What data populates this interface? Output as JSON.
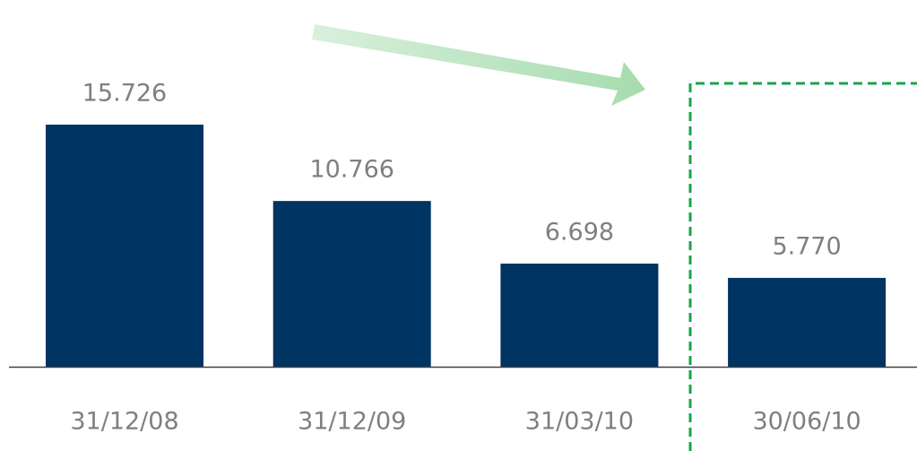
{
  "chart_data": {
    "type": "bar",
    "categories": [
      "31/12/08",
      "31/12/09",
      "31/03/10",
      "30/06/10"
    ],
    "values": [
      15726,
      10766,
      6698,
      5770
    ],
    "value_labels": [
      "15.726",
      "10.766",
      "6.698",
      "5.770"
    ],
    "color": "#003462"
  }
}
